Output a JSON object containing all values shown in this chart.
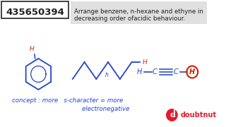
{
  "bg_color": "#ffffff",
  "question_text": "Arrange benzene, n-hexane and ethyne in\ndecreasing order ofacidic behaviour.",
  "question_font_size": 6.2,
  "id_text": "435650394",
  "red_color": "#cc2200",
  "dark_color": "#222222",
  "blue_color": "#2244cc",
  "handwritten_color": "#2244cc",
  "concept_line1": "concept : more   s-character = more",
  "concept_line2": "                                    electronegative",
  "logo_red": "#e8192c"
}
